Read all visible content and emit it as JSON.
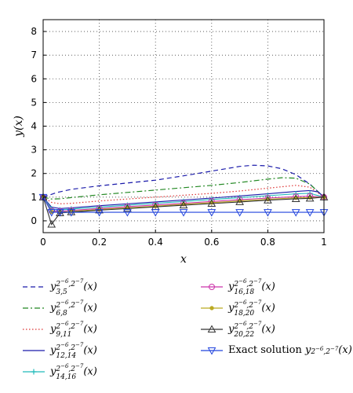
{
  "chart_data": {
    "type": "line",
    "xlabel": "x",
    "ylabel": "y(x)",
    "xlim": [
      0,
      1
    ],
    "ylim": [
      -0.5,
      8.5
    ],
    "xticks": [
      "0",
      "0.2",
      "0.4",
      "0.6",
      "0.8",
      "1"
    ],
    "yticks": [
      "0",
      "1",
      "2",
      "3",
      "4",
      "5",
      "6",
      "7",
      "8"
    ],
    "grid": true,
    "legend_placement": "below",
    "series": [
      {
        "name": "y_{3,5}^{2^{-6},2^{-7}}(x)",
        "color": "#1a1aaa",
        "style": "dashed",
        "marker": "none",
        "x": [
          0,
          0.02,
          0.05,
          0.1,
          0.2,
          0.3,
          0.4,
          0.5,
          0.6,
          0.7,
          0.75,
          0.8,
          0.85,
          0.9,
          0.95,
          1.0
        ],
        "y": [
          1.0,
          1.08,
          1.2,
          1.33,
          1.48,
          1.6,
          1.72,
          1.9,
          2.1,
          2.3,
          2.35,
          2.32,
          2.2,
          1.95,
          1.55,
          1.0
        ]
      },
      {
        "name": "y_{6,8}^{2^{-6},2^{-7}}(x)",
        "color": "#228822",
        "style": "dashdot",
        "marker": "none",
        "x": [
          0,
          0.03,
          0.06,
          0.1,
          0.2,
          0.3,
          0.4,
          0.5,
          0.6,
          0.7,
          0.8,
          0.85,
          0.9,
          0.95,
          1.0
        ],
        "y": [
          1.0,
          0.92,
          0.93,
          0.98,
          1.1,
          1.2,
          1.3,
          1.4,
          1.5,
          1.62,
          1.76,
          1.82,
          1.8,
          1.55,
          1.0
        ]
      },
      {
        "name": "y_{9,11}^{2^{-6},2^{-7}}(x)",
        "color": "#dd3333",
        "style": "dotted",
        "marker": "none",
        "x": [
          0,
          0.03,
          0.06,
          0.1,
          0.2,
          0.3,
          0.4,
          0.5,
          0.6,
          0.7,
          0.8,
          0.9,
          0.95,
          1.0
        ],
        "y": [
          1.0,
          0.78,
          0.72,
          0.74,
          0.84,
          0.92,
          1.0,
          1.08,
          1.16,
          1.26,
          1.38,
          1.5,
          1.42,
          1.0
        ]
      },
      {
        "name": "y_{12,14}^{2^{-6},2^{-7}}(x)",
        "color": "#1a1aaa",
        "style": "solid",
        "marker": "none",
        "x": [
          0,
          0.03,
          0.06,
          0.1,
          0.2,
          0.3,
          0.4,
          0.5,
          0.6,
          0.7,
          0.8,
          0.9,
          0.95,
          0.98,
          1.0
        ],
        "y": [
          1.0,
          0.58,
          0.52,
          0.55,
          0.64,
          0.72,
          0.8,
          0.88,
          0.96,
          1.05,
          1.14,
          1.24,
          1.28,
          1.22,
          1.0
        ]
      },
      {
        "name": "y_{14,16}^{2^{-6},2^{-7}}(x)",
        "color": "#22bbbb",
        "style": "solid",
        "marker": "plus",
        "x": [
          0,
          0.03,
          0.06,
          0.1,
          0.2,
          0.3,
          0.4,
          0.5,
          0.6,
          0.7,
          0.8,
          0.9,
          0.95,
          1.0
        ],
        "y": [
          1.0,
          0.5,
          0.46,
          0.5,
          0.58,
          0.66,
          0.74,
          0.82,
          0.9,
          0.98,
          1.06,
          1.14,
          1.16,
          1.0
        ]
      },
      {
        "name": "y_{16,18}^{2^{-6},2^{-7}}(x)",
        "color": "#cc33aa",
        "style": "solid",
        "marker": "circle",
        "x": [
          0,
          0.03,
          0.06,
          0.1,
          0.2,
          0.3,
          0.4,
          0.5,
          0.6,
          0.7,
          0.8,
          0.9,
          0.95,
          1.0
        ],
        "y": [
          1.0,
          0.42,
          0.4,
          0.44,
          0.52,
          0.6,
          0.67,
          0.74,
          0.82,
          0.89,
          0.96,
          1.02,
          1.04,
          1.0
        ]
      },
      {
        "name": "y_{18,20}^{2^{-6},2^{-7}}(x)",
        "color": "#bbaa22",
        "style": "solid",
        "marker": "dot",
        "x": [
          0,
          0.03,
          0.06,
          0.1,
          0.2,
          0.3,
          0.4,
          0.5,
          0.6,
          0.7,
          0.8,
          0.9,
          0.95,
          1.0
        ],
        "y": [
          1.0,
          0.38,
          0.36,
          0.4,
          0.48,
          0.55,
          0.62,
          0.7,
          0.77,
          0.84,
          0.91,
          0.97,
          0.98,
          1.0
        ]
      },
      {
        "name": "y_{20,22}^{2^{-6},2^{-7}}(x)",
        "color": "#333333",
        "style": "solid",
        "marker": "triangle-up",
        "x": [
          0,
          0.03,
          0.06,
          0.1,
          0.2,
          0.3,
          0.4,
          0.5,
          0.6,
          0.7,
          0.8,
          0.9,
          0.95,
          1.0
        ],
        "y": [
          1.0,
          -0.15,
          0.33,
          0.37,
          0.45,
          0.52,
          0.59,
          0.66,
          0.73,
          0.8,
          0.87,
          0.93,
          0.95,
          1.0
        ]
      },
      {
        "name": "Exact solution y^{2^{-6},2^{-7}}(x)",
        "color": "#2244dd",
        "style": "solid",
        "marker": "triangle-down",
        "x": [
          0,
          0.03,
          0.06,
          0.1,
          0.2,
          0.3,
          0.4,
          0.5,
          0.6,
          0.7,
          0.8,
          0.9,
          0.95,
          1.0
        ],
        "y": [
          1.0,
          0.36,
          0.36,
          0.36,
          0.36,
          0.36,
          0.36,
          0.36,
          0.36,
          0.36,
          0.36,
          0.36,
          0.36,
          0.36
        ]
      }
    ]
  },
  "legend": {
    "left": [
      {
        "base": "y",
        "sub": "3,5",
        "sup": "2",
        "sup_exp1": "−6",
        "sup_mid": ",2",
        "sup_exp2": "−7",
        "tail": "(x)"
      },
      {
        "base": "y",
        "sub": "6,8",
        "sup": "2",
        "sup_exp1": "−6",
        "sup_mid": ",2",
        "sup_exp2": "−7",
        "tail": "(x)"
      },
      {
        "base": "y",
        "sub": "9,11",
        "sup": "2",
        "sup_exp1": "−6",
        "sup_mid": ",2",
        "sup_exp2": "−7",
        "tail": "(x)"
      },
      {
        "base": "y",
        "sub": "12,14",
        "sup": "2",
        "sup_exp1": "−6",
        "sup_mid": ",2",
        "sup_exp2": "−7",
        "tail": "(x)"
      },
      {
        "base": "y",
        "sub": "14,16",
        "sup": "2",
        "sup_exp1": "−6",
        "sup_mid": ",2",
        "sup_exp2": "−7",
        "tail": "(x)"
      }
    ],
    "right": [
      {
        "base": "y",
        "sub": "16,18",
        "sup": "2",
        "sup_exp1": "−6",
        "sup_mid": ",2",
        "sup_exp2": "−7",
        "tail": "(x)"
      },
      {
        "base": "y",
        "sub": "18,20",
        "sup": "2",
        "sup_exp1": "−6",
        "sup_mid": ",2",
        "sup_exp2": "−7",
        "tail": "(x)"
      },
      {
        "base": "y",
        "sub": "20,22",
        "sup": "2",
        "sup_exp1": "−6",
        "sup_mid": ",2",
        "sup_exp2": "−7",
        "tail": "(x)"
      },
      {
        "prefix": "Exact solution ",
        "base": "y",
        "sub": "",
        "sup": "2",
        "sup_exp1": "−6",
        "sup_mid": ",2",
        "sup_exp2": "−7",
        "tail": "(x)"
      }
    ]
  }
}
